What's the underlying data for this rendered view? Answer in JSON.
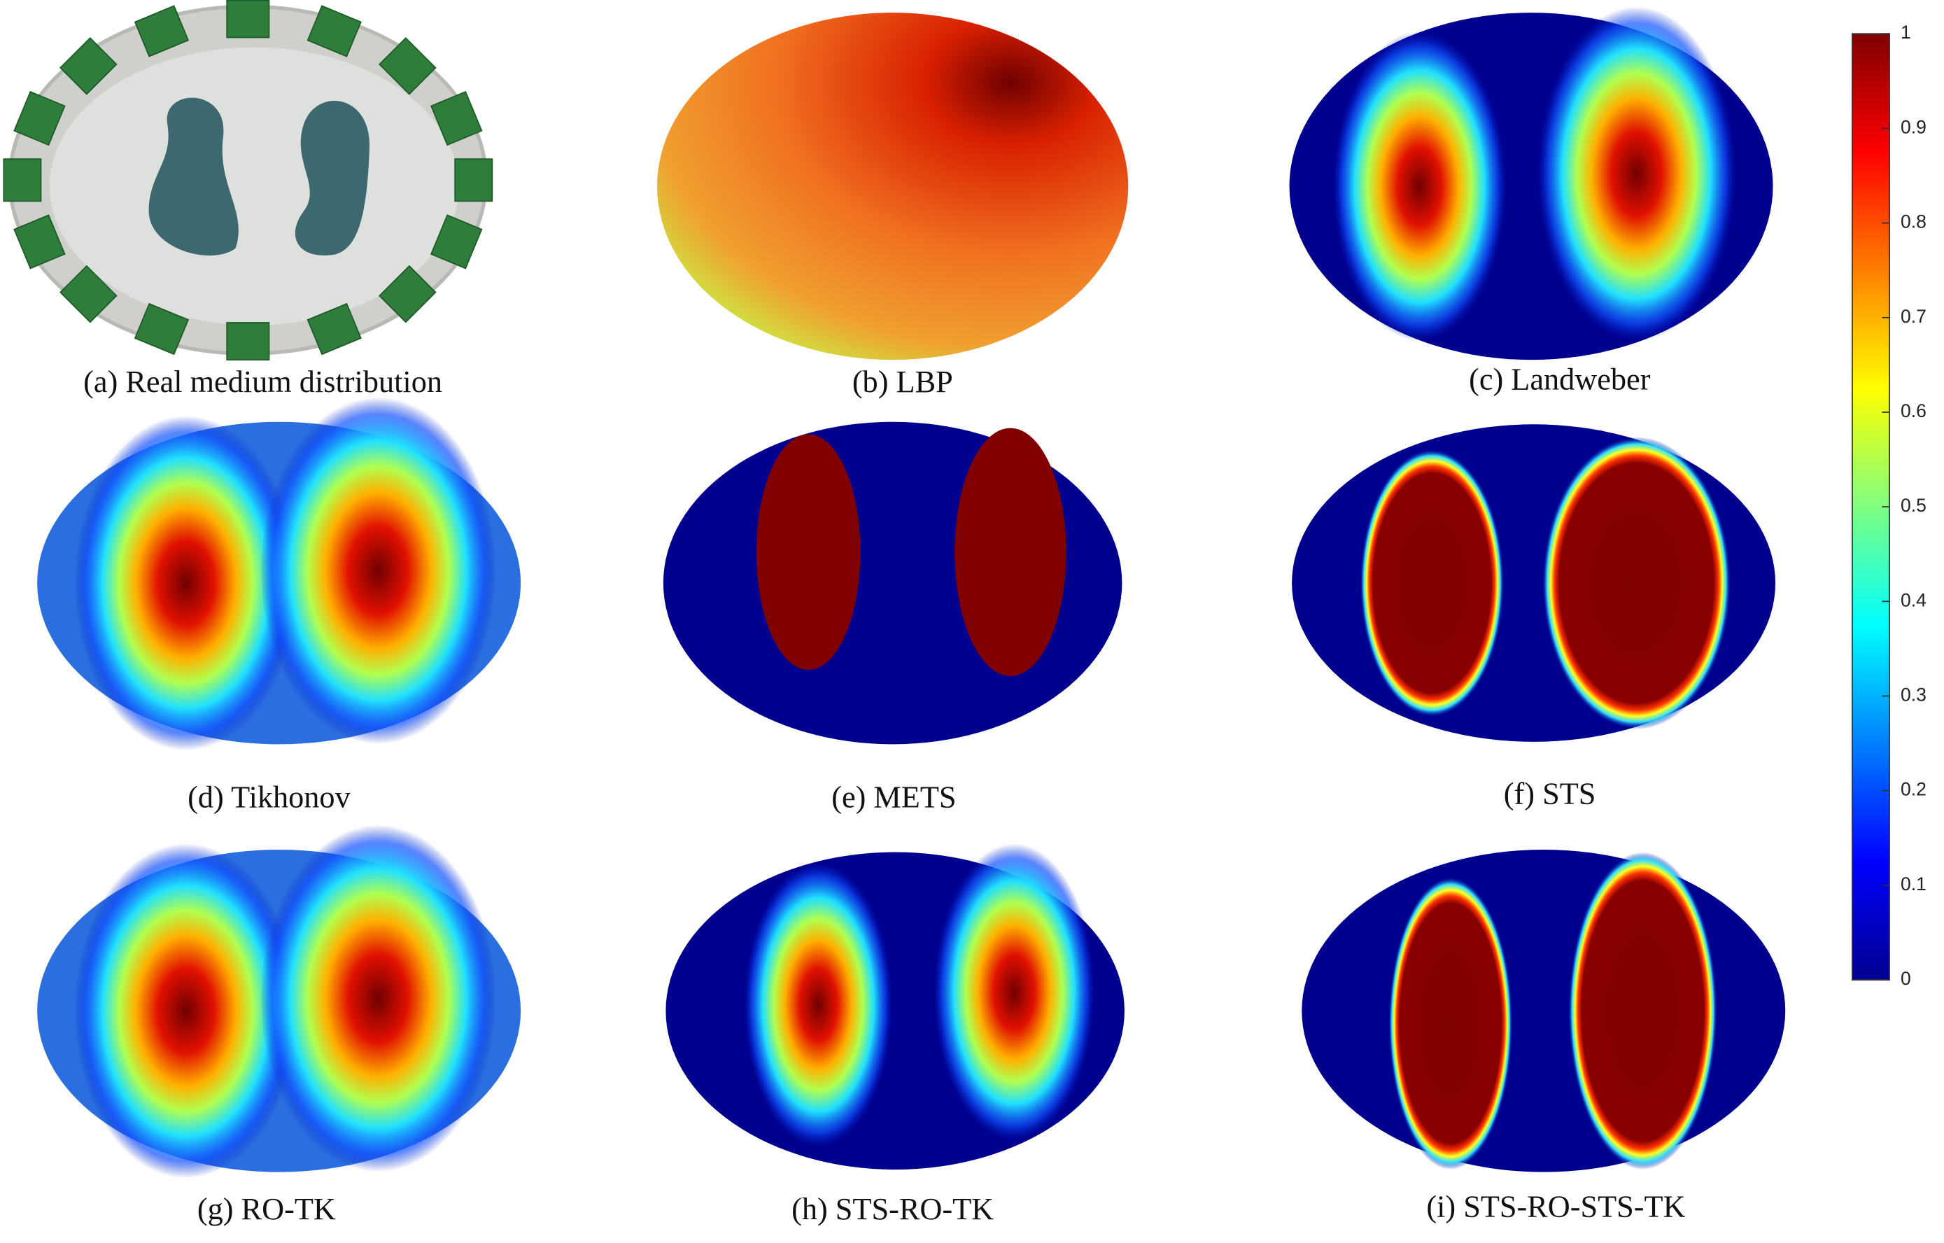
{
  "panels": [
    {
      "caption": "(a) Real medium distribution"
    },
    {
      "caption": "(b) LBP"
    },
    {
      "caption": "(c) Landweber"
    },
    {
      "caption": "(d) Tikhonov"
    },
    {
      "caption": "(e) METS"
    },
    {
      "caption": "(f) STS"
    },
    {
      "caption": "(g) RO-TK"
    },
    {
      "caption": "(h) STS-RO-TK"
    },
    {
      "caption": "(i) STS-RO-STS-TK"
    }
  ],
  "colorbar": {
    "ticks": [
      0,
      0.1,
      0.2,
      0.3,
      0.4,
      0.5,
      0.6,
      0.7,
      0.8,
      0.9,
      1
    ],
    "lim": [
      0,
      1
    ]
  }
}
